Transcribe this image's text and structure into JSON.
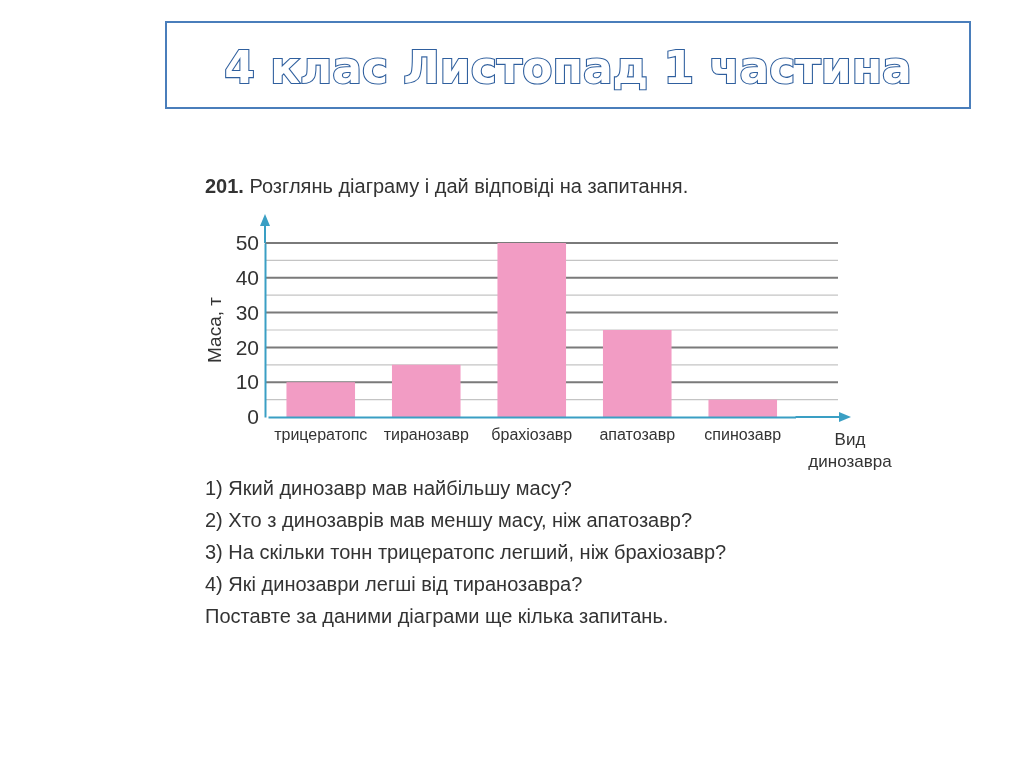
{
  "chart_data": {
    "type": "bar",
    "title": "4 клас Листопад 1 частина",
    "subtitle": "201. Розглянь діаграму і дай відповіді на запитання.",
    "xlabel": "Вид динозавра",
    "ylabel": "Маса, т",
    "categories": [
      "трицератопс",
      "тиранозавр",
      "брахіозавр",
      "апатозавр",
      "спинозавр"
    ],
    "values": [
      10,
      15,
      50,
      25,
      5
    ],
    "color": "#f29cc4",
    "ylim": [
      0,
      50
    ],
    "yticks": [
      0,
      {
        "value": 5,
        "label": null
      },
      10,
      {
        "value": 15,
        "label": null
      },
      20,
      {
        "value": 25,
        "label": null
      },
      30,
      {
        "value": 35,
        "label": null
      },
      40,
      {
        "value": 45,
        "label": null
      },
      50
    ],
    "grid": "y",
    "annotations": [
      "1) Який динозавр мав найбільшу масу?",
      "2) Хто з динозаврів мав меншу масу, ніж апатозавр?",
      "3) На скільки тонн трицератопс легший, ніж брахіозавр?",
      "4) Які динозаври легші від тиранозавра?",
      "Поставте за даними діаграми ще кілька запитань."
    ]
  }
}
